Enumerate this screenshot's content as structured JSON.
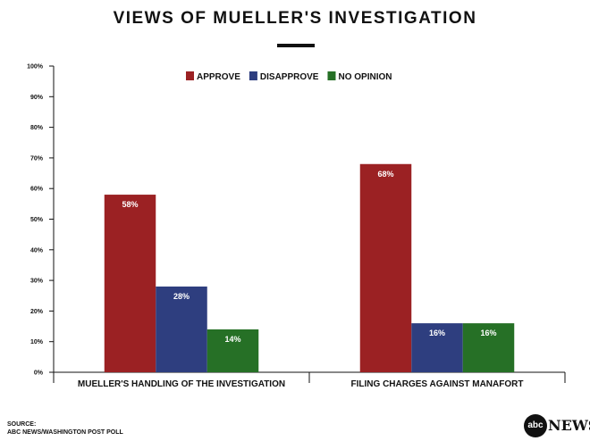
{
  "title": "VIEWS OF MUELLER'S INVESTIGATION",
  "source": {
    "label": "SOURCE:",
    "text": "ABC NEWS/WASHINGTON POST POLL"
  },
  "logo": {
    "mark": "abc",
    "word": "NEWS"
  },
  "chart_data": {
    "type": "bar",
    "title": "VIEWS OF MUELLER'S INVESTIGATION",
    "categories": [
      "MUELLER'S HANDLING OF THE INVESTIGATION",
      "FILING CHARGES AGAINST MANAFORT"
    ],
    "series": [
      {
        "name": "APPROVE",
        "color": "#9b2123",
        "values": [
          58,
          68
        ],
        "labels": [
          "58%",
          "68%"
        ]
      },
      {
        "name": "DISAPPROVE",
        "color": "#2e3e7f",
        "values": [
          28,
          16
        ],
        "labels": [
          "28%",
          "16%"
        ]
      },
      {
        "name": "NO OPINION",
        "color": "#267026",
        "values": [
          14,
          16
        ],
        "labels": [
          "14%",
          "16%"
        ]
      }
    ],
    "yticks": [
      "0%",
      "10%",
      "20%",
      "30%",
      "40%",
      "50%",
      "60%",
      "70%",
      "80%",
      "90%",
      "100%"
    ],
    "ylim": [
      0,
      100
    ],
    "legend": "top-center",
    "grid": false,
    "xlabel": "",
    "ylabel": ""
  }
}
